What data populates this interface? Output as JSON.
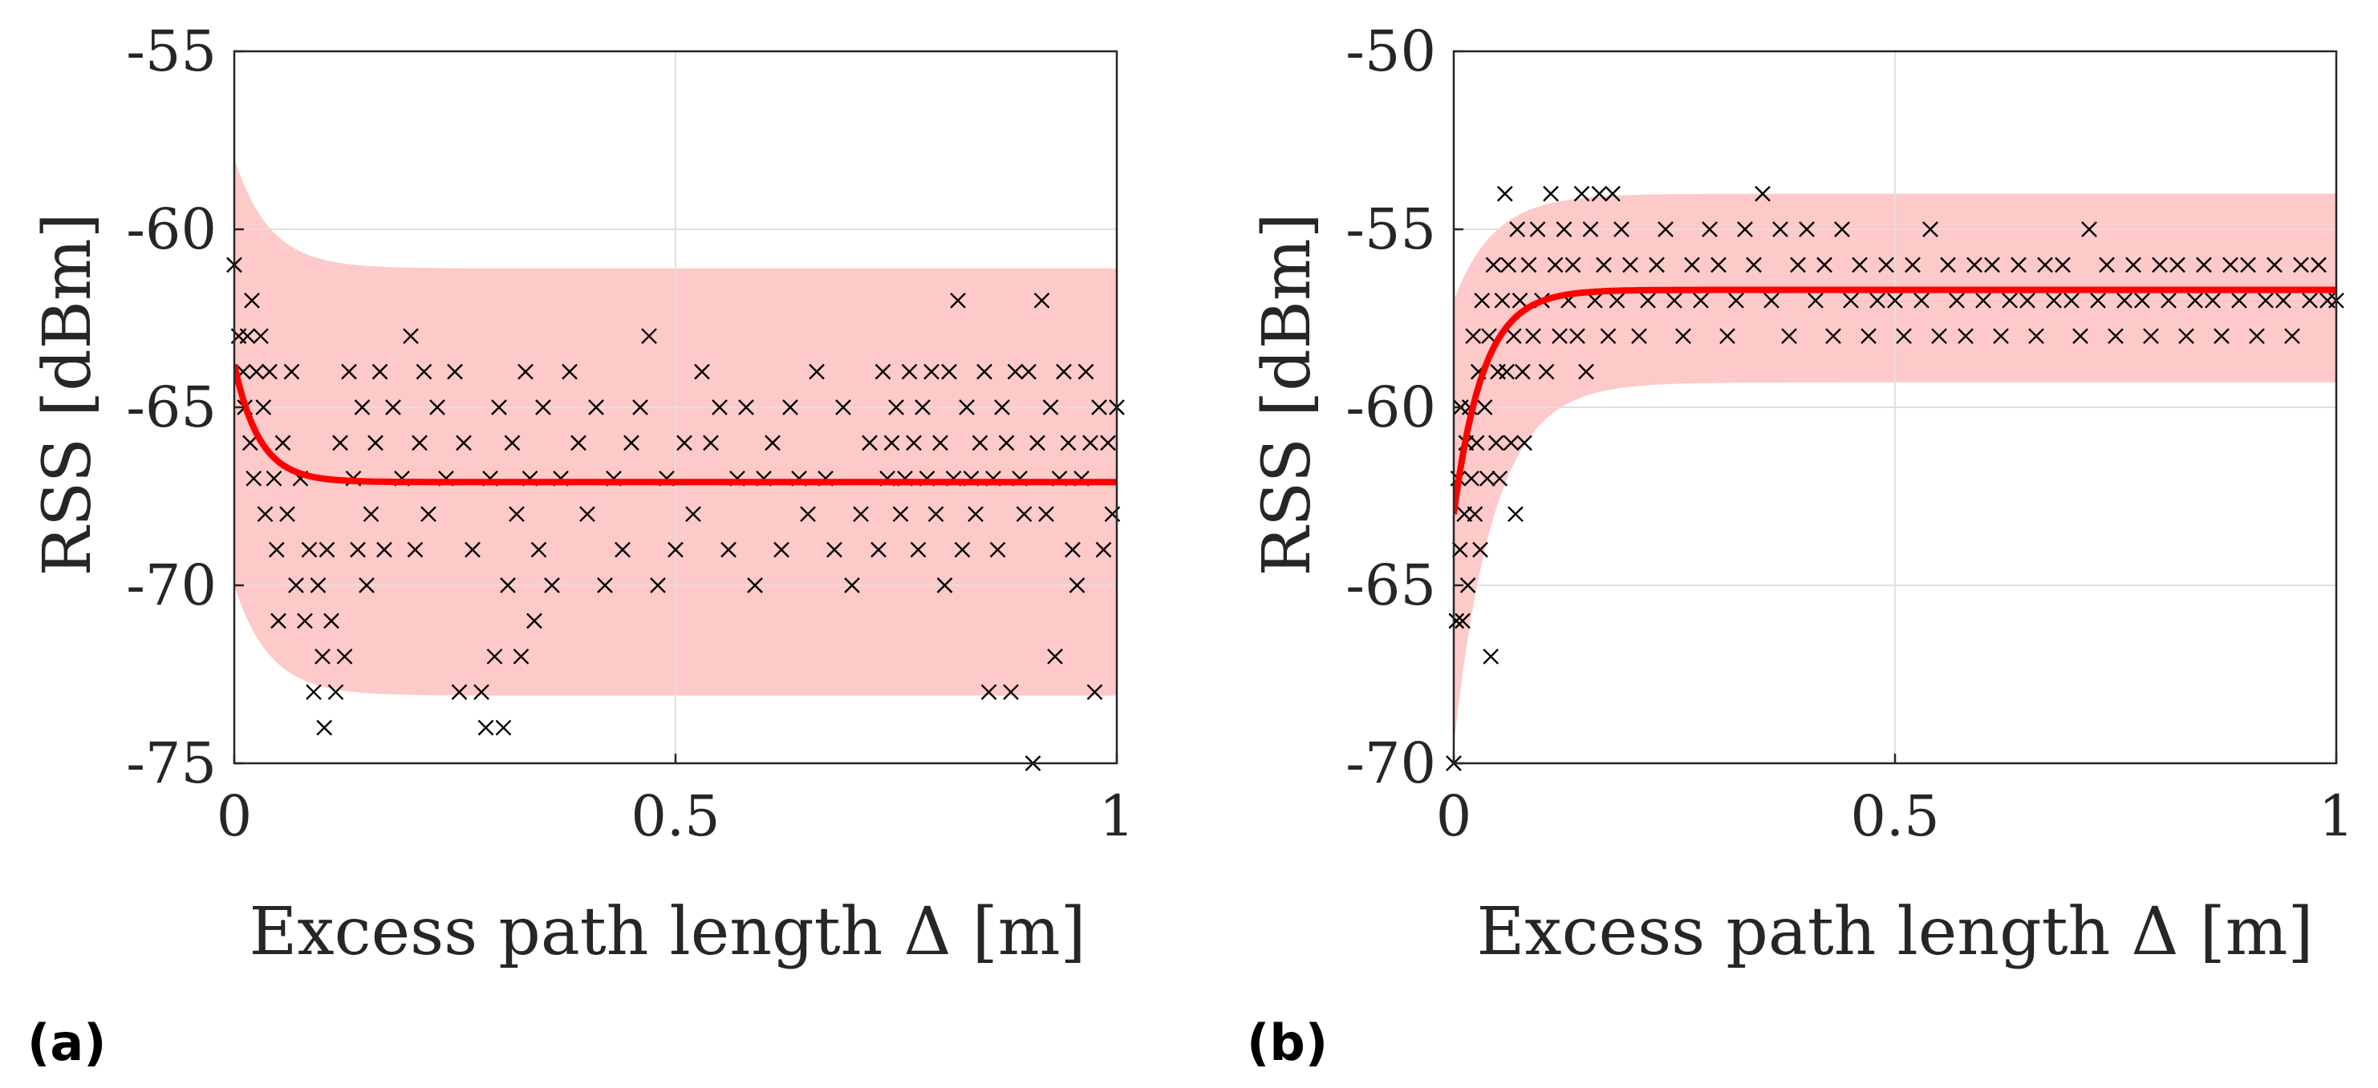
{
  "colors": {
    "band": "#fdc9c9",
    "fit": "#ff0000",
    "marker": "#000000",
    "axis": "#262626",
    "grid": "#dfdfdf"
  },
  "chart_data": [
    {
      "type": "scatter",
      "panel_label": "(a)",
      "xlabel": "Excess path length Δ [m]",
      "ylabel": "RSS [dBm]",
      "xlim": [
        0,
        1
      ],
      "ylim": [
        -75,
        -55
      ],
      "xticks": [
        0,
        0.5,
        1
      ],
      "xtick_labels": [
        "0",
        "0.5",
        "1"
      ],
      "yticks": [
        -75,
        -70,
        -65,
        -60,
        -55
      ],
      "ytick_labels": [
        "-75",
        "-70",
        "-65",
        "-60",
        "-55"
      ],
      "grid": true,
      "marker": "x",
      "fit_curve": {
        "asymptote": -67.1,
        "start": -63.8,
        "decay_per_m": 35
      },
      "band": {
        "asymptote_upper": -61.1,
        "asymptote_lower": -73.1,
        "start_upper": -58.0,
        "start_lower": -70.0,
        "decay_per_m": 25
      },
      "points": [
        [
          0.0,
          -61
        ],
        [
          0.005,
          -63
        ],
        [
          0.01,
          -64
        ],
        [
          0.012,
          -65
        ],
        [
          0.015,
          -63
        ],
        [
          0.018,
          -66
        ],
        [
          0.02,
          -62
        ],
        [
          0.022,
          -67
        ],
        [
          0.025,
          -64
        ],
        [
          0.03,
          -63
        ],
        [
          0.033,
          -65
        ],
        [
          0.035,
          -68
        ],
        [
          0.04,
          -64
        ],
        [
          0.045,
          -67
        ],
        [
          0.048,
          -69
        ],
        [
          0.05,
          -71
        ],
        [
          0.055,
          -66
        ],
        [
          0.06,
          -68
        ],
        [
          0.065,
          -64
        ],
        [
          0.07,
          -70
        ],
        [
          0.075,
          -67
        ],
        [
          0.08,
          -71
        ],
        [
          0.085,
          -69
        ],
        [
          0.09,
          -73
        ],
        [
          0.095,
          -70
        ],
        [
          0.1,
          -72
        ],
        [
          0.102,
          -74
        ],
        [
          0.105,
          -69
        ],
        [
          0.11,
          -71
        ],
        [
          0.115,
          -73
        ],
        [
          0.12,
          -66
        ],
        [
          0.125,
          -72
        ],
        [
          0.13,
          -64
        ],
        [
          0.135,
          -67
        ],
        [
          0.14,
          -69
        ],
        [
          0.145,
          -65
        ],
        [
          0.15,
          -70
        ],
        [
          0.155,
          -68
        ],
        [
          0.16,
          -66
        ],
        [
          0.165,
          -64
        ],
        [
          0.17,
          -69
        ],
        [
          0.18,
          -65
        ],
        [
          0.19,
          -67
        ],
        [
          0.2,
          -63
        ],
        [
          0.205,
          -69
        ],
        [
          0.21,
          -66
        ],
        [
          0.215,
          -64
        ],
        [
          0.22,
          -68
        ],
        [
          0.23,
          -65
        ],
        [
          0.24,
          -67
        ],
        [
          0.25,
          -64
        ],
        [
          0.255,
          -73
        ],
        [
          0.26,
          -66
        ],
        [
          0.27,
          -69
        ],
        [
          0.28,
          -73
        ],
        [
          0.285,
          -74
        ],
        [
          0.29,
          -67
        ],
        [
          0.295,
          -72
        ],
        [
          0.3,
          -65
        ],
        [
          0.305,
          -74
        ],
        [
          0.31,
          -70
        ],
        [
          0.315,
          -66
        ],
        [
          0.32,
          -68
        ],
        [
          0.325,
          -72
        ],
        [
          0.33,
          -64
        ],
        [
          0.335,
          -67
        ],
        [
          0.34,
          -71
        ],
        [
          0.345,
          -69
        ],
        [
          0.35,
          -65
        ],
        [
          0.36,
          -70
        ],
        [
          0.37,
          -67
        ],
        [
          0.38,
          -64
        ],
        [
          0.39,
          -66
        ],
        [
          0.4,
          -68
        ],
        [
          0.41,
          -65
        ],
        [
          0.42,
          -70
        ],
        [
          0.43,
          -67
        ],
        [
          0.44,
          -69
        ],
        [
          0.45,
          -66
        ],
        [
          0.46,
          -65
        ],
        [
          0.47,
          -63
        ],
        [
          0.48,
          -70
        ],
        [
          0.49,
          -67
        ],
        [
          0.5,
          -69
        ],
        [
          0.51,
          -66
        ],
        [
          0.52,
          -68
        ],
        [
          0.53,
          -64
        ],
        [
          0.54,
          -66
        ],
        [
          0.55,
          -65
        ],
        [
          0.56,
          -69
        ],
        [
          0.57,
          -67
        ],
        [
          0.58,
          -65
        ],
        [
          0.59,
          -70
        ],
        [
          0.6,
          -67
        ],
        [
          0.61,
          -66
        ],
        [
          0.62,
          -69
        ],
        [
          0.63,
          -65
        ],
        [
          0.64,
          -67
        ],
        [
          0.65,
          -68
        ],
        [
          0.66,
          -64
        ],
        [
          0.67,
          -67
        ],
        [
          0.68,
          -69
        ],
        [
          0.69,
          -65
        ],
        [
          0.7,
          -70
        ],
        [
          0.71,
          -68
        ],
        [
          0.72,
          -66
        ],
        [
          0.73,
          -69
        ],
        [
          0.735,
          -64
        ],
        [
          0.74,
          -67
        ],
        [
          0.745,
          -66
        ],
        [
          0.75,
          -65
        ],
        [
          0.755,
          -68
        ],
        [
          0.76,
          -67
        ],
        [
          0.765,
          -64
        ],
        [
          0.77,
          -66
        ],
        [
          0.775,
          -69
        ],
        [
          0.78,
          -65
        ],
        [
          0.785,
          -67
        ],
        [
          0.79,
          -64
        ],
        [
          0.795,
          -68
        ],
        [
          0.8,
          -66
        ],
        [
          0.805,
          -70
        ],
        [
          0.81,
          -64
        ],
        [
          0.815,
          -67
        ],
        [
          0.82,
          -62
        ],
        [
          0.825,
          -69
        ],
        [
          0.83,
          -65
        ],
        [
          0.835,
          -67
        ],
        [
          0.84,
          -68
        ],
        [
          0.845,
          -66
        ],
        [
          0.85,
          -64
        ],
        [
          0.855,
          -73
        ],
        [
          0.86,
          -67
        ],
        [
          0.865,
          -69
        ],
        [
          0.87,
          -65
        ],
        [
          0.875,
          -66
        ],
        [
          0.88,
          -73
        ],
        [
          0.885,
          -64
        ],
        [
          0.89,
          -67
        ],
        [
          0.895,
          -68
        ],
        [
          0.9,
          -64
        ],
        [
          0.905,
          -75
        ],
        [
          0.91,
          -66
        ],
        [
          0.915,
          -62
        ],
        [
          0.92,
          -68
        ],
        [
          0.925,
          -65
        ],
        [
          0.93,
          -72
        ],
        [
          0.935,
          -67
        ],
        [
          0.94,
          -64
        ],
        [
          0.945,
          -66
        ],
        [
          0.95,
          -69
        ],
        [
          0.955,
          -70
        ],
        [
          0.96,
          -67
        ],
        [
          0.965,
          -64
        ],
        [
          0.97,
          -66
        ],
        [
          0.975,
          -73
        ],
        [
          0.98,
          -65
        ],
        [
          0.985,
          -69
        ],
        [
          0.99,
          -66
        ],
        [
          0.995,
          -68
        ],
        [
          1.0,
          -65
        ]
      ]
    },
    {
      "type": "scatter",
      "panel_label": "(b)",
      "xlabel": "Excess path length Δ [m]",
      "ylabel": "RSS [dBm]",
      "xlim": [
        0,
        1
      ],
      "ylim": [
        -70,
        -50
      ],
      "xticks": [
        0,
        0.5,
        1
      ],
      "xtick_labels": [
        "0",
        "0.5",
        "1"
      ],
      "yticks": [
        -70,
        -65,
        -60,
        -55,
        -50
      ],
      "ytick_labels": [
        "-70",
        "-65",
        "-60",
        "-55",
        "-50"
      ],
      "grid": true,
      "marker": "x",
      "fit_curve": {
        "asymptote": -56.7,
        "start": -63.0,
        "decay_per_m": 30
      },
      "band": {
        "asymptote_upper": -54.0,
        "asymptote_lower": -59.3,
        "start_upper": -57.0,
        "start_lower": -69.5,
        "decay_per_m": 22
      },
      "points": [
        [
          0.0,
          -70
        ],
        [
          0.003,
          -66
        ],
        [
          0.005,
          -62
        ],
        [
          0.007,
          -64
        ],
        [
          0.008,
          -60
        ],
        [
          0.01,
          -66
        ],
        [
          0.012,
          -63
        ],
        [
          0.014,
          -61
        ],
        [
          0.016,
          -65
        ],
        [
          0.018,
          -60
        ],
        [
          0.02,
          -62
        ],
        [
          0.022,
          -58
        ],
        [
          0.024,
          -63
        ],
        [
          0.026,
          -61
        ],
        [
          0.028,
          -59
        ],
        [
          0.03,
          -64
        ],
        [
          0.032,
          -57
        ],
        [
          0.035,
          -60
        ],
        [
          0.038,
          -62
        ],
        [
          0.04,
          -58
        ],
        [
          0.042,
          -67
        ],
        [
          0.045,
          -56
        ],
        [
          0.048,
          -61
        ],
        [
          0.05,
          -59
        ],
        [
          0.052,
          -62
        ],
        [
          0.055,
          -57
        ],
        [
          0.058,
          -54
        ],
        [
          0.06,
          -59
        ],
        [
          0.062,
          -56
        ],
        [
          0.065,
          -61
        ],
        [
          0.068,
          -58
        ],
        [
          0.07,
          -63
        ],
        [
          0.072,
          -55
        ],
        [
          0.075,
          -57
        ],
        [
          0.078,
          -59
        ],
        [
          0.08,
          -61
        ],
        [
          0.085,
          -56
        ],
        [
          0.09,
          -58
        ],
        [
          0.095,
          -55
        ],
        [
          0.1,
          -57
        ],
        [
          0.105,
          -59
        ],
        [
          0.11,
          -54
        ],
        [
          0.115,
          -56
        ],
        [
          0.12,
          -58
        ],
        [
          0.125,
          -55
        ],
        [
          0.13,
          -57
        ],
        [
          0.135,
          -56
        ],
        [
          0.14,
          -58
        ],
        [
          0.145,
          -54
        ],
        [
          0.15,
          -59
        ],
        [
          0.155,
          -55
        ],
        [
          0.16,
          -57
        ],
        [
          0.165,
          -54
        ],
        [
          0.17,
          -56
        ],
        [
          0.175,
          -58
        ],
        [
          0.18,
          -54
        ],
        [
          0.185,
          -57
        ],
        [
          0.19,
          -55
        ],
        [
          0.2,
          -56
        ],
        [
          0.21,
          -58
        ],
        [
          0.22,
          -57
        ],
        [
          0.23,
          -56
        ],
        [
          0.24,
          -55
        ],
        [
          0.25,
          -57
        ],
        [
          0.26,
          -58
        ],
        [
          0.27,
          -56
        ],
        [
          0.28,
          -57
        ],
        [
          0.29,
          -55
        ],
        [
          0.3,
          -56
        ],
        [
          0.31,
          -58
        ],
        [
          0.32,
          -57
        ],
        [
          0.33,
          -55
        ],
        [
          0.34,
          -56
        ],
        [
          0.35,
          -54
        ],
        [
          0.36,
          -57
        ],
        [
          0.37,
          -55
        ],
        [
          0.38,
          -58
        ],
        [
          0.39,
          -56
        ],
        [
          0.4,
          -55
        ],
        [
          0.41,
          -57
        ],
        [
          0.42,
          -56
        ],
        [
          0.43,
          -58
        ],
        [
          0.44,
          -55
        ],
        [
          0.45,
          -57
        ],
        [
          0.46,
          -56
        ],
        [
          0.47,
          -58
        ],
        [
          0.48,
          -57
        ],
        [
          0.49,
          -56
        ],
        [
          0.5,
          -57
        ],
        [
          0.51,
          -58
        ],
        [
          0.52,
          -56
        ],
        [
          0.53,
          -57
        ],
        [
          0.54,
          -55
        ],
        [
          0.55,
          -58
        ],
        [
          0.56,
          -56
        ],
        [
          0.57,
          -57
        ],
        [
          0.58,
          -58
        ],
        [
          0.59,
          -56
        ],
        [
          0.6,
          -57
        ],
        [
          0.61,
          -56
        ],
        [
          0.62,
          -58
        ],
        [
          0.63,
          -57
        ],
        [
          0.64,
          -56
        ],
        [
          0.65,
          -57
        ],
        [
          0.66,
          -58
        ],
        [
          0.67,
          -56
        ],
        [
          0.68,
          -57
        ],
        [
          0.69,
          -56
        ],
        [
          0.7,
          -57
        ],
        [
          0.71,
          -58
        ],
        [
          0.72,
          -55
        ],
        [
          0.73,
          -57
        ],
        [
          0.74,
          -56
        ],
        [
          0.75,
          -58
        ],
        [
          0.76,
          -57
        ],
        [
          0.77,
          -56
        ],
        [
          0.78,
          -57
        ],
        [
          0.79,
          -58
        ],
        [
          0.8,
          -56
        ],
        [
          0.81,
          -57
        ],
        [
          0.82,
          -56
        ],
        [
          0.83,
          -58
        ],
        [
          0.84,
          -57
        ],
        [
          0.85,
          -56
        ],
        [
          0.86,
          -57
        ],
        [
          0.87,
          -58
        ],
        [
          0.88,
          -56
        ],
        [
          0.89,
          -57
        ],
        [
          0.9,
          -56
        ],
        [
          0.91,
          -58
        ],
        [
          0.92,
          -57
        ],
        [
          0.93,
          -56
        ],
        [
          0.94,
          -57
        ],
        [
          0.95,
          -58
        ],
        [
          0.96,
          -56
        ],
        [
          0.97,
          -57
        ],
        [
          0.98,
          -56
        ],
        [
          0.99,
          -57
        ],
        [
          1.0,
          -57
        ]
      ]
    }
  ]
}
